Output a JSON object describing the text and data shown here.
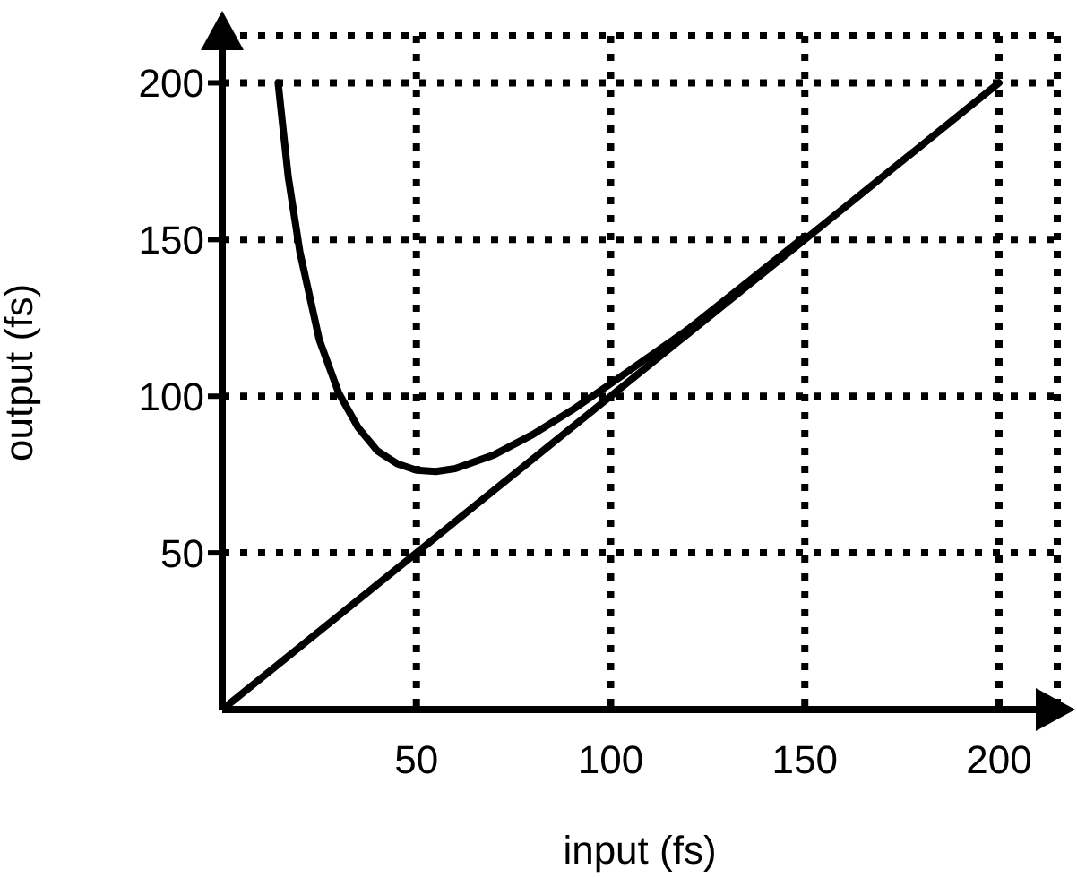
{
  "chart_data": {
    "type": "line",
    "xlabel": "input (fs)",
    "ylabel": "output (fs)",
    "xlim": [
      0,
      215
    ],
    "ylim": [
      0,
      215
    ],
    "xticks": [
      50,
      100,
      150,
      200
    ],
    "yticks": [
      50,
      100,
      150,
      200
    ],
    "grid": true,
    "marker": "none",
    "line_style": "solid",
    "series": [
      {
        "color": "#000000",
        "x": [
          14.4,
          15,
          17,
          20,
          25,
          30,
          35,
          40,
          45,
          50,
          55,
          60,
          70,
          80,
          90,
          100,
          120,
          150
        ],
        "values": [
          200,
          193,
          170,
          146,
          118,
          101,
          90,
          82.5,
          78.5,
          76.4,
          76,
          76.9,
          81.3,
          87.8,
          95.5,
          104,
          121.4,
          151
        ]
      },
      {
        "color": "#000000",
        "x": [
          0,
          200
        ],
        "values": [
          0,
          200
        ]
      }
    ]
  }
}
